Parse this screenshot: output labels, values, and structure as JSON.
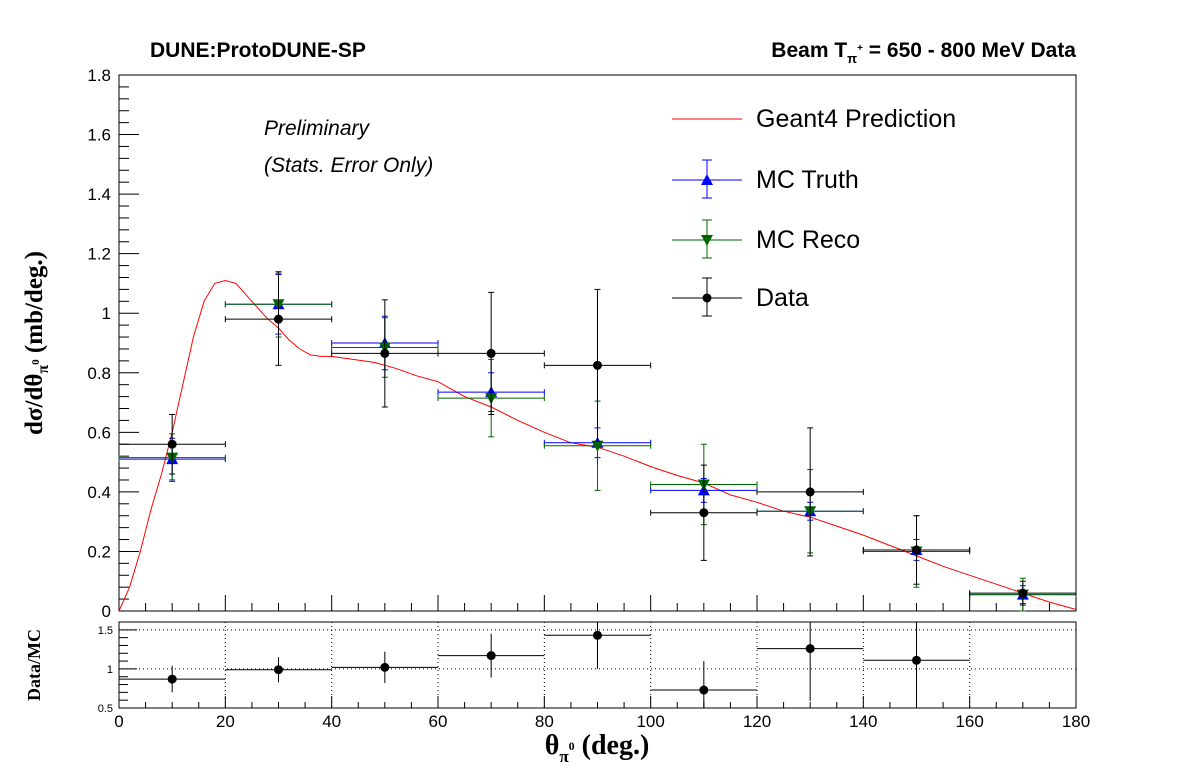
{
  "header": {
    "left": "DUNE:ProtoDUNE-SP",
    "right_prefix": "Beam T",
    "right_sub": "π",
    "right_sup": "+",
    "right_suffix": " = 650 - 800 MeV Data"
  },
  "annotations": {
    "preliminary": "Preliminary",
    "stats": "(Stats. Error Only)"
  },
  "chart_data": [
    {
      "type": "scatter",
      "title": "",
      "xlabel": "θπ⁰ (deg.)",
      "ylabel": "dσ/dθπ⁰ (mb/deg.)",
      "xlim": [
        0,
        180
      ],
      "ylim": [
        0,
        1.8
      ],
      "x_ticks": [
        0,
        20,
        40,
        60,
        80,
        100,
        120,
        140,
        160,
        180
      ],
      "y_ticks": [
        0,
        0.2,
        0.4,
        0.6,
        0.8,
        1,
        1.2,
        1.4,
        1.6,
        1.8
      ],
      "x_tick_labels": [
        "0",
        "20",
        "40",
        "60",
        "80",
        "100",
        "120",
        "140",
        "160",
        "180"
      ],
      "y_tick_labels": [
        "0",
        "0.2",
        "0.4",
        "0.6",
        "0.8",
        "1",
        "1.2",
        "1.4",
        "1.6",
        "1.8"
      ],
      "legend": {
        "position": "top-right",
        "entries": [
          "Geant4 Prediction",
          "MC Truth",
          "MC Reco",
          "Data"
        ]
      },
      "series": [
        {
          "name": "Geant4 Prediction",
          "style": "line",
          "color": "#ff0000",
          "x": [
            0,
            2,
            4,
            6,
            8,
            10,
            12,
            14,
            16,
            18,
            20,
            22,
            24,
            26,
            28,
            30,
            32,
            34,
            36,
            38,
            40,
            44,
            48,
            52,
            56,
            60,
            65,
            70,
            75,
            80,
            85,
            90,
            95,
            100,
            105,
            110,
            115,
            120,
            125,
            130,
            135,
            140,
            145,
            150,
            155,
            160,
            165,
            170,
            175,
            180
          ],
          "y": [
            0,
            0.08,
            0.2,
            0.34,
            0.46,
            0.6,
            0.76,
            0.92,
            1.04,
            1.1,
            1.11,
            1.1,
            1.06,
            1.02,
            0.98,
            0.95,
            0.91,
            0.88,
            0.86,
            0.855,
            0.855,
            0.845,
            0.835,
            0.815,
            0.79,
            0.77,
            0.72,
            0.685,
            0.64,
            0.6,
            0.565,
            0.55,
            0.52,
            0.485,
            0.455,
            0.43,
            0.39,
            0.365,
            0.335,
            0.315,
            0.285,
            0.255,
            0.22,
            0.185,
            0.15,
            0.12,
            0.09,
            0.06,
            0.03,
            0.005
          ]
        },
        {
          "name": "MC Truth",
          "style": "errorbar",
          "marker": "triangle-up",
          "color": "#0000ff",
          "x": [
            10,
            30,
            50,
            70,
            90,
            110,
            130,
            150,
            170
          ],
          "y": [
            0.51,
            1.03,
            0.9,
            0.735,
            0.565,
            0.405,
            0.335,
            0.205,
            0.055
          ],
          "yerr": [
            0.07,
            0.1,
            0.09,
            0.065,
            0.05,
            0.04,
            0.03,
            0.035,
            0.03
          ],
          "xerr": [
            10,
            10,
            10,
            10,
            10,
            10,
            10,
            10,
            10
          ]
        },
        {
          "name": "MC Reco",
          "style": "errorbar",
          "marker": "triangle-down",
          "color": "#006600",
          "x": [
            10,
            30,
            50,
            70,
            90,
            110,
            130,
            150,
            170
          ],
          "y": [
            0.515,
            1.03,
            0.885,
            0.715,
            0.555,
            0.425,
            0.335,
            0.2,
            0.055
          ],
          "yerr": [
            0.08,
            0.11,
            0.1,
            0.13,
            0.15,
            0.135,
            0.14,
            0.12,
            0.055
          ],
          "xerr": [
            10,
            10,
            10,
            10,
            10,
            10,
            10,
            10,
            10
          ]
        },
        {
          "name": "Data",
          "style": "errorbar",
          "marker": "circle",
          "color": "#000000",
          "x": [
            10,
            30,
            50,
            70,
            90,
            110,
            130,
            150,
            170
          ],
          "y": [
            0.56,
            0.98,
            0.865,
            0.865,
            0.825,
            0.33,
            0.4,
            0.205,
            0.06
          ],
          "yerr": [
            0.1,
            0.155,
            0.18,
            0.205,
            0.255,
            0.16,
            0.215,
            0.115,
            0.04
          ],
          "xerr": [
            10,
            10,
            10,
            10,
            10,
            10,
            10,
            10,
            10
          ]
        }
      ]
    },
    {
      "type": "scatter",
      "title": "",
      "xlabel": "θπ⁰ (deg.)",
      "ylabel": "Data/MC",
      "xlim": [
        0,
        180
      ],
      "ylim": [
        0.5,
        1.6
      ],
      "x_ticks": [
        0,
        20,
        40,
        60,
        80,
        100,
        120,
        140,
        160,
        180
      ],
      "y_ticks": [
        0.5,
        1,
        1.5
      ],
      "x_tick_labels": [
        "0",
        "20",
        "40",
        "60",
        "80",
        "100",
        "120",
        "140",
        "160",
        "180"
      ],
      "y_tick_labels": [
        "0.5",
        "1",
        "1.5"
      ],
      "grid": true,
      "series": [
        {
          "style": "errorbar",
          "marker": "circle",
          "color": "#000000",
          "x": [
            10,
            30,
            50,
            70,
            90,
            110,
            130,
            150
          ],
          "y": [
            0.87,
            0.99,
            1.02,
            1.17,
            1.43,
            0.73,
            1.26,
            1.11
          ],
          "yerr": [
            0.17,
            0.16,
            0.2,
            0.28,
            0.43,
            0.37,
            0.67,
            0.63
          ],
          "xerr": [
            10,
            10,
            10,
            10,
            10,
            10,
            10,
            10
          ]
        }
      ]
    }
  ]
}
